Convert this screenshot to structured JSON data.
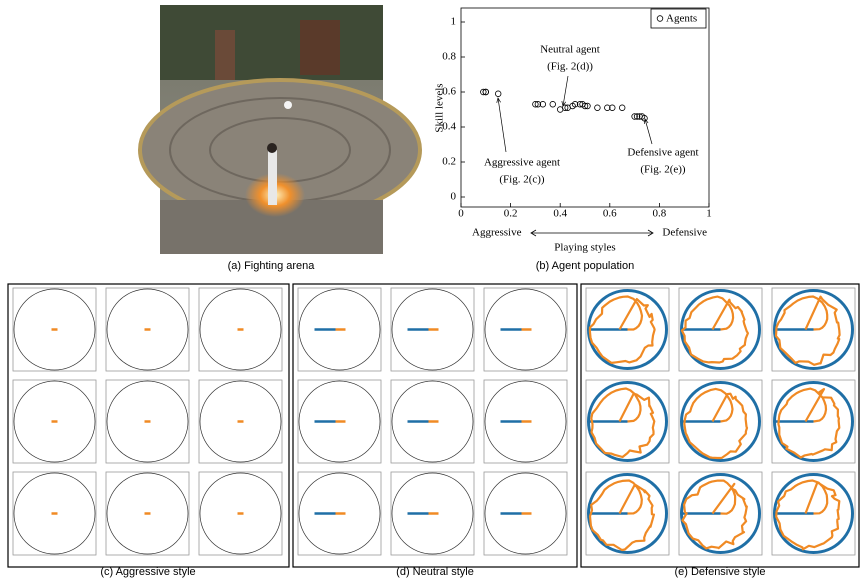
{
  "captions": [
    "(a) Fighting arena",
    "(b) Agent population",
    "(c) Aggressive style",
    "(d) Neutral style",
    "(e) Defensive style"
  ],
  "chart_data": {
    "type": "scatter",
    "xlabel": "Playing styles",
    "ylabel": "Skill levels",
    "x_end_labels": [
      "Aggressive",
      "Defensive"
    ],
    "xlim": [
      0,
      1
    ],
    "ylim": [
      0,
      1
    ],
    "xticks": [
      0,
      0.2,
      0.4,
      0.6,
      0.8,
      1
    ],
    "yticks": [
      0,
      0.2,
      0.4,
      0.6,
      0.8,
      1
    ],
    "legend": "upper right",
    "x": [
      0.09,
      0.1,
      0.1,
      0.15,
      0.3,
      0.31,
      0.33,
      0.37,
      0.4,
      0.42,
      0.43,
      0.45,
      0.46,
      0.48,
      0.49,
      0.5,
      0.51,
      0.55,
      0.59,
      0.61,
      0.65,
      0.7,
      0.71,
      0.72,
      0.73,
      0.74
    ],
    "series": [
      {
        "name": "Agents",
        "color": "#000000",
        "values": [
          0.6,
          0.6,
          0.6,
          0.59,
          0.53,
          0.53,
          0.53,
          0.53,
          0.5,
          0.51,
          0.51,
          0.52,
          0.53,
          0.53,
          0.53,
          0.52,
          0.52,
          0.51,
          0.51,
          0.51,
          0.51,
          0.46,
          0.46,
          0.46,
          0.46,
          0.45
        ]
      }
    ],
    "annotations": [
      {
        "lines": [
          "Neutral agent",
          "(Fig. 2(d))"
        ]
      },
      {
        "lines": [
          "Aggressive agent",
          "(Fig. 2(c))"
        ]
      },
      {
        "lines": [
          "Defensive agent",
          "(Fig. 2(e))"
        ]
      }
    ]
  }
}
